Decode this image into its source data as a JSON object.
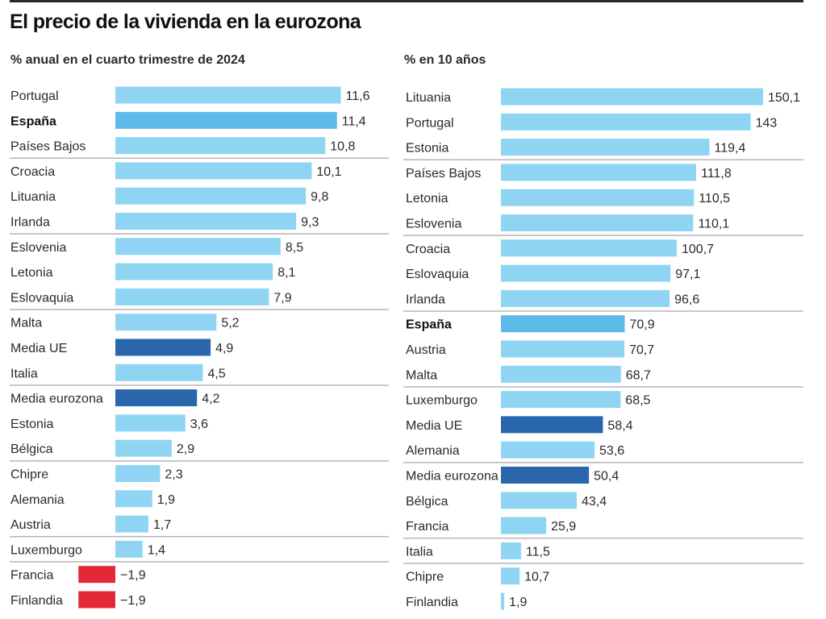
{
  "title": "El precio de la vivienda en la eurozona",
  "colors": {
    "bar_default": "#8fd5f3",
    "bar_spain": "#5cbbe8",
    "bar_average": "#2a66ab",
    "bar_negative": "#e32838",
    "separator": "#b5b5b5"
  },
  "chart_data": [
    {
      "type": "bar",
      "orientation": "horizontal",
      "title": "% anual en el cuarto trimestre de 2024",
      "separators_after_rows": [
        2,
        5,
        8,
        11,
        14,
        17,
        18
      ],
      "rows": [
        {
          "label": "Portugal",
          "value_label": "11,6",
          "value": 11.6,
          "style": "default"
        },
        {
          "label": "España",
          "value_label": "11,4",
          "value": 11.4,
          "style": "spain"
        },
        {
          "label": "Países Bajos",
          "value_label": "10,8",
          "value": 10.8,
          "style": "default"
        },
        {
          "label": "Croacia",
          "value_label": "10,1",
          "value": 10.1,
          "style": "default"
        },
        {
          "label": "Lituania",
          "value_label": "9,8",
          "value": 9.8,
          "style": "default"
        },
        {
          "label": "Irlanda",
          "value_label": "9,3",
          "value": 9.3,
          "style": "default"
        },
        {
          "label": "Eslovenia",
          "value_label": "8,5",
          "value": 8.5,
          "style": "default"
        },
        {
          "label": "Letonia",
          "value_label": "8,1",
          "value": 8.1,
          "style": "default"
        },
        {
          "label": "Eslovaquia",
          "value_label": "7,9",
          "value": 7.9,
          "style": "default"
        },
        {
          "label": "Malta",
          "value_label": "5,2",
          "value": 5.2,
          "style": "default"
        },
        {
          "label": "Media UE",
          "value_label": "4,9",
          "value": 4.9,
          "style": "average"
        },
        {
          "label": "Italia",
          "value_label": "4,5",
          "value": 4.5,
          "style": "default"
        },
        {
          "label": "Media eurozona",
          "value_label": "4,2",
          "value": 4.2,
          "style": "average"
        },
        {
          "label": "Estonia",
          "value_label": "3,6",
          "value": 3.6,
          "style": "default"
        },
        {
          "label": "Bélgica",
          "value_label": "2,9",
          "value": 2.9,
          "style": "default"
        },
        {
          "label": "Chipre",
          "value_label": "2,3",
          "value": 2.3,
          "style": "default"
        },
        {
          "label": "Alemania",
          "value_label": "1,9",
          "value": 1.9,
          "style": "default"
        },
        {
          "label": "Austria",
          "value_label": "1,7",
          "value": 1.7,
          "style": "default"
        },
        {
          "label": "Luxemburgo",
          "value_label": "1,4",
          "value": 1.4,
          "style": "default"
        },
        {
          "label": "Francia",
          "value_label": "−1,9",
          "value": -1.9,
          "style": "negative"
        },
        {
          "label": "Finlandia",
          "value_label": "−1,9",
          "value": -1.9,
          "style": "negative"
        }
      ]
    },
    {
      "type": "bar",
      "orientation": "horizontal",
      "title": "% en 10 años",
      "separators_after_rows": [
        2,
        5,
        8,
        11,
        14,
        17,
        18
      ],
      "rows": [
        {
          "label": "Lituania",
          "value_label": "150,1",
          "value": 150.1,
          "style": "default"
        },
        {
          "label": "Portugal",
          "value_label": "143",
          "value": 143,
          "style": "default"
        },
        {
          "label": "Estonia",
          "value_label": "119,4",
          "value": 119.4,
          "style": "default"
        },
        {
          "label": "Países Bajos",
          "value_label": "111,8",
          "value": 111.8,
          "style": "default"
        },
        {
          "label": "Letonia",
          "value_label": "110,5",
          "value": 110.5,
          "style": "default"
        },
        {
          "label": "Eslovenia",
          "value_label": "110,1",
          "value": 110.1,
          "style": "default"
        },
        {
          "label": "Croacia",
          "value_label": "100,7",
          "value": 100.7,
          "style": "default"
        },
        {
          "label": "Eslovaquia",
          "value_label": "97,1",
          "value": 97.1,
          "style": "default"
        },
        {
          "label": "Irlanda",
          "value_label": "96,6",
          "value": 96.6,
          "style": "default"
        },
        {
          "label": "España",
          "value_label": "70,9",
          "value": 70.9,
          "style": "spain"
        },
        {
          "label": "Austria",
          "value_label": "70,7",
          "value": 70.7,
          "style": "default"
        },
        {
          "label": "Malta",
          "value_label": "68,7",
          "value": 68.7,
          "style": "default"
        },
        {
          "label": "Luxemburgo",
          "value_label": "68,5",
          "value": 68.5,
          "style": "default"
        },
        {
          "label": "Media UE",
          "value_label": "58,4",
          "value": 58.4,
          "style": "average"
        },
        {
          "label": "Alemania",
          "value_label": "53,6",
          "value": 53.6,
          "style": "default"
        },
        {
          "label": "Media eurozona",
          "value_label": "50,4",
          "value": 50.4,
          "style": "average"
        },
        {
          "label": "Bélgica",
          "value_label": "43,4",
          "value": 43.4,
          "style": "default"
        },
        {
          "label": "Francia",
          "value_label": "25,9",
          "value": 25.9,
          "style": "default"
        },
        {
          "label": "Italia",
          "value_label": "11,5",
          "value": 11.5,
          "style": "default"
        },
        {
          "label": "Chipre",
          "value_label": "10,7",
          "value": 10.7,
          "style": "default"
        },
        {
          "label": "Finlandia",
          "value_label": "1,9",
          "value": 1.9,
          "style": "default"
        }
      ]
    }
  ]
}
